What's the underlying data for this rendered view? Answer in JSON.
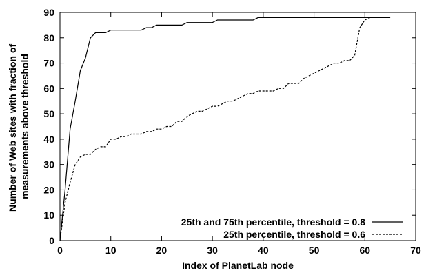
{
  "chart_data": {
    "type": "line",
    "xlabel": "Index of PlanetLab node",
    "ylabel": [
      "Number of Web sites with fraction of",
      "measurements above threshold"
    ],
    "xlim": [
      0,
      70
    ],
    "ylim": [
      0,
      90
    ],
    "xticks": [
      0,
      10,
      20,
      30,
      40,
      50,
      60,
      70
    ],
    "yticks": [
      0,
      10,
      20,
      30,
      40,
      50,
      60,
      70,
      80,
      90
    ],
    "grid": false,
    "legend_position": "bottom-right",
    "series": [
      {
        "name": "25th and 75th percentile, threshold = 0.8",
        "style": "solid",
        "color": "#000000",
        "x": [
          0,
          1,
          2,
          3,
          4,
          5,
          6,
          7,
          8,
          9,
          10,
          11,
          12,
          13,
          14,
          15,
          16,
          17,
          18,
          19,
          20,
          21,
          22,
          23,
          24,
          25,
          26,
          27,
          28,
          29,
          30,
          31,
          32,
          33,
          34,
          35,
          36,
          37,
          38,
          39,
          40,
          45,
          50,
          55,
          60,
          65
        ],
        "y": [
          0,
          20,
          44,
          55,
          67,
          72,
          80,
          82,
          82,
          82,
          83,
          83,
          83,
          83,
          83,
          83,
          83,
          84,
          84,
          85,
          85,
          85,
          85,
          85,
          85,
          86,
          86,
          86,
          86,
          86,
          86,
          87,
          87,
          87,
          87,
          87,
          87,
          87,
          87,
          88,
          88,
          88,
          88,
          88,
          88,
          88
        ]
      },
      {
        "name": "25th percentile, threshold = 0.6",
        "style": "dashed",
        "color": "#000000",
        "x": [
          0,
          1,
          2,
          3,
          4,
          5,
          6,
          7,
          8,
          9,
          10,
          11,
          12,
          13,
          14,
          15,
          16,
          17,
          18,
          19,
          20,
          21,
          22,
          23,
          24,
          25,
          26,
          27,
          28,
          29,
          30,
          31,
          32,
          33,
          34,
          35,
          36,
          37,
          38,
          39,
          40,
          41,
          42,
          43,
          44,
          45,
          46,
          47,
          48,
          49,
          50,
          51,
          52,
          53,
          54,
          55,
          56,
          57,
          58,
          59,
          60,
          61,
          62
        ],
        "y": [
          0,
          15,
          23,
          30,
          33,
          34,
          34,
          36,
          37,
          37,
          40,
          40,
          41,
          41,
          42,
          42,
          42,
          43,
          43,
          44,
          44,
          45,
          45,
          47,
          47,
          49,
          50,
          51,
          51,
          52,
          53,
          53,
          54,
          55,
          55,
          56,
          57,
          58,
          58,
          59,
          59,
          59,
          59,
          60,
          60,
          62,
          62,
          62,
          64,
          65,
          66,
          67,
          68,
          69,
          70,
          70,
          71,
          71,
          73,
          84,
          87,
          88,
          88
        ]
      }
    ]
  }
}
